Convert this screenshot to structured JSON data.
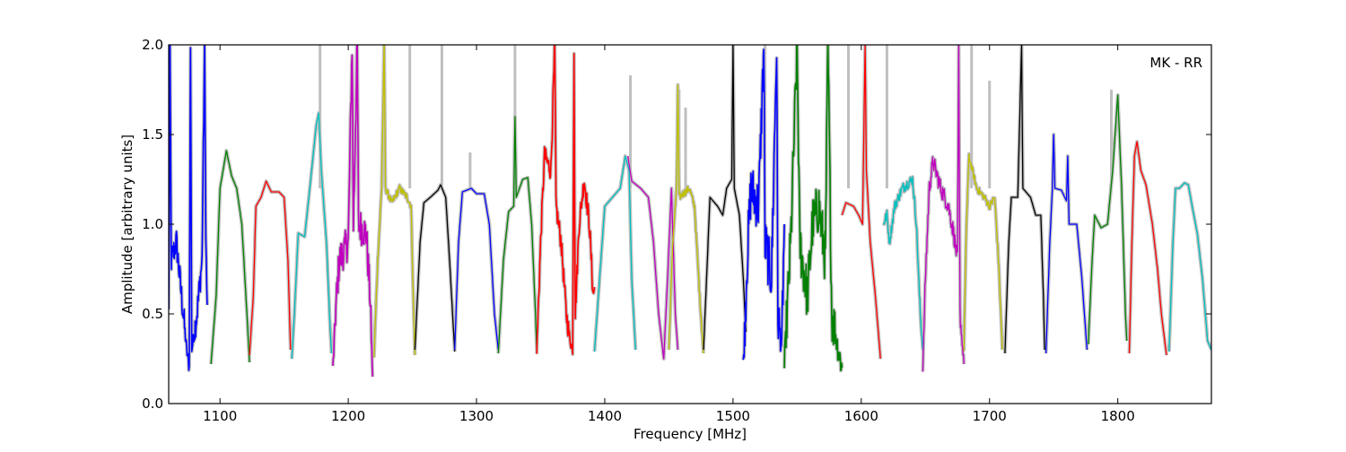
{
  "chart_data": {
    "type": "line",
    "title": "",
    "annotation": "MK - RR",
    "xlabel": "Frequency [MHz]",
    "ylabel": "Amplitude [arbitrary units]",
    "xlim": [
      1060,
      1873
    ],
    "ylim": [
      0,
      2.0
    ],
    "xticks": [
      1100,
      1200,
      1300,
      1400,
      1500,
      1600,
      1700,
      1800
    ],
    "xtick_labels": [
      "1100",
      "1200",
      "1300",
      "1400",
      "1500",
      "1600",
      "1700",
      "1800"
    ],
    "yticks": [
      0,
      0.5,
      1.0,
      1.5,
      2.0
    ],
    "ytick_labels": [
      "0.0",
      "0.5",
      "1.0",
      "1.5",
      "2.0"
    ],
    "grid": false,
    "envelope_color": "#bfbfbf",
    "rfi_spikes": [
      [
        1178,
        2.0
      ],
      [
        1248,
        2.0
      ],
      [
        1273,
        2.0
      ],
      [
        1295,
        1.4
      ],
      [
        1330,
        2.0
      ],
      [
        1420,
        1.83
      ],
      [
        1458,
        1.75
      ],
      [
        1463,
        1.65
      ],
      [
        1525,
        2.0
      ],
      [
        1590,
        2.0
      ],
      [
        1620,
        2.0
      ],
      [
        1686,
        2.0
      ],
      [
        1700,
        1.8
      ],
      [
        1795,
        1.75
      ]
    ],
    "series": [
      {
        "color": "#0000ff",
        "noise": 0.08,
        "points": [
          [
            1060,
            0.5
          ],
          [
            1061,
            2.0
          ],
          [
            1062,
            0.8
          ],
          [
            1066,
            0.9
          ],
          [
            1070,
            0.6
          ],
          [
            1074,
            0.3
          ],
          [
            1076,
            0.2
          ],
          [
            1077,
            2.0
          ],
          [
            1078,
            0.3
          ],
          [
            1082,
            0.5
          ],
          [
            1086,
            0.8
          ],
          [
            1088,
            2.0
          ],
          [
            1089,
            0.9
          ],
          [
            1090,
            0.55
          ]
        ]
      },
      {
        "color": "#008000",
        "noise": 0,
        "points": [
          [
            1093,
            0.22
          ],
          [
            1097,
            0.6
          ],
          [
            1100,
            1.2
          ],
          [
            1105,
            1.41
          ],
          [
            1109,
            1.27
          ],
          [
            1113,
            1.2
          ],
          [
            1117,
            1.0
          ],
          [
            1121,
            0.5
          ],
          [
            1123,
            0.23
          ]
        ]
      },
      {
        "color": "#ff0000",
        "noise": 0,
        "points": [
          [
            1123,
            0.27
          ],
          [
            1126,
            0.6
          ],
          [
            1128,
            1.1
          ],
          [
            1132,
            1.15
          ],
          [
            1136,
            1.24
          ],
          [
            1140,
            1.18
          ],
          [
            1146,
            1.18
          ],
          [
            1150,
            1.15
          ],
          [
            1153,
            0.8
          ],
          [
            1155,
            0.3
          ]
        ]
      },
      {
        "color": "#00bfbf",
        "noise": 0,
        "points": [
          [
            1156,
            0.25
          ],
          [
            1158,
            0.5
          ],
          [
            1161,
            0.95
          ],
          [
            1166,
            0.93
          ],
          [
            1170,
            1.2
          ],
          [
            1175,
            1.55
          ],
          [
            1177,
            1.62
          ],
          [
            1179,
            1.3
          ],
          [
            1183,
            0.9
          ],
          [
            1186,
            0.4
          ],
          [
            1187,
            0.28
          ]
        ]
      },
      {
        "color": "#bf00bf",
        "noise": 0.1,
        "points": [
          [
            1188,
            0.18
          ],
          [
            1190,
            0.5
          ],
          [
            1193,
            0.8
          ],
          [
            1200,
            0.9
          ],
          [
            1203,
            2.0
          ],
          [
            1204,
            1.0
          ],
          [
            1207,
            2.0
          ],
          [
            1208,
            1.0
          ],
          [
            1214,
            0.95
          ],
          [
            1217,
            0.6
          ],
          [
            1219,
            0.15
          ]
        ]
      },
      {
        "color": "#bfbf00",
        "noise": 0.02,
        "points": [
          [
            1220,
            0.25
          ],
          [
            1223,
            0.8
          ],
          [
            1226,
            1.2
          ],
          [
            1228,
            2.0
          ],
          [
            1229,
            1.2
          ],
          [
            1234,
            1.12
          ],
          [
            1240,
            1.2
          ],
          [
            1246,
            1.15
          ],
          [
            1249,
            1.1
          ],
          [
            1251,
            0.5
          ],
          [
            1252,
            0.27
          ]
        ]
      },
      {
        "color": "#000000",
        "noise": 0,
        "points": [
          [
            1252,
            0.3
          ],
          [
            1256,
            0.9
          ],
          [
            1259,
            1.12
          ],
          [
            1264,
            1.15
          ],
          [
            1270,
            1.19
          ],
          [
            1272,
            1.22
          ],
          [
            1276,
            1.15
          ],
          [
            1279,
            0.8
          ],
          [
            1283,
            0.29
          ]
        ]
      },
      {
        "color": "#0000ff",
        "noise": 0,
        "points": [
          [
            1283,
            0.3
          ],
          [
            1286,
            0.9
          ],
          [
            1289,
            1.18
          ],
          [
            1296,
            1.2
          ],
          [
            1300,
            1.17
          ],
          [
            1306,
            1.17
          ],
          [
            1310,
            1.0
          ],
          [
            1314,
            0.5
          ],
          [
            1317,
            0.3
          ]
        ]
      },
      {
        "color": "#008000",
        "noise": 0,
        "points": [
          [
            1317,
            0.28
          ],
          [
            1321,
            0.8
          ],
          [
            1325,
            1.07
          ],
          [
            1329,
            1.1
          ],
          [
            1330,
            1.6
          ],
          [
            1331,
            1.15
          ],
          [
            1336,
            1.25
          ],
          [
            1340,
            1.26
          ],
          [
            1343,
            1.0
          ],
          [
            1346,
            0.5
          ],
          [
            1347,
            0.3
          ]
        ]
      },
      {
        "color": "#ff0000",
        "noise": 0.06,
        "points": [
          [
            1347,
            0.3
          ],
          [
            1350,
            0.9
          ],
          [
            1353,
            1.38
          ],
          [
            1358,
            1.3
          ],
          [
            1361,
            2.0
          ],
          [
            1362,
            1.1
          ],
          [
            1366,
            0.9
          ],
          [
            1370,
            0.5
          ],
          [
            1373,
            0.35
          ],
          [
            1375,
            0.3
          ],
          [
            1376,
            2.0
          ],
          [
            1377,
            0.5
          ],
          [
            1380,
            1.0
          ],
          [
            1384,
            1.25
          ],
          [
            1388,
            1.0
          ],
          [
            1391,
            0.6
          ],
          [
            1392,
            0.65
          ]
        ]
      },
      {
        "color": "#00bfbf",
        "noise": 0,
        "points": [
          [
            1392,
            0.29
          ],
          [
            1396,
            0.7
          ],
          [
            1400,
            1.1
          ],
          [
            1406,
            1.15
          ],
          [
            1412,
            1.2
          ],
          [
            1416,
            1.38
          ],
          [
            1419,
            1.3
          ],
          [
            1421,
            0.7
          ],
          [
            1424,
            0.3
          ]
        ]
      },
      {
        "color": "#bf00bf",
        "noise": 0,
        "points": [
          [
            1418,
            1.38
          ],
          [
            1421,
            1.24
          ],
          [
            1428,
            1.2
          ],
          [
            1434,
            1.15
          ],
          [
            1438,
            0.9
          ],
          [
            1442,
            0.5
          ],
          [
            1446,
            0.25
          ],
          [
            1449,
            0.7
          ],
          [
            1452,
            1.2
          ],
          [
            1455,
            0.5
          ],
          [
            1457,
            0.3
          ]
        ]
      },
      {
        "color": "#bfbf00",
        "noise": 0.02,
        "points": [
          [
            1450,
            0.3
          ],
          [
            1453,
            0.9
          ],
          [
            1456,
            1.2
          ],
          [
            1457,
            1.78
          ],
          [
            1458,
            1.15
          ],
          [
            1466,
            1.2
          ],
          [
            1470,
            1.1
          ],
          [
            1474,
            0.6
          ],
          [
            1477,
            0.28
          ]
        ]
      },
      {
        "color": "#000000",
        "noise": 0,
        "points": [
          [
            1477,
            0.3
          ],
          [
            1480,
            0.8
          ],
          [
            1482,
            1.15
          ],
          [
            1488,
            1.1
          ],
          [
            1492,
            1.05
          ],
          [
            1495,
            1.2
          ],
          [
            1499,
            1.25
          ],
          [
            1500,
            2.0
          ],
          [
            1501,
            1.2
          ],
          [
            1505,
            1.05
          ],
          [
            1508,
            0.7
          ],
          [
            1510,
            0.4
          ]
        ]
      },
      {
        "color": "#0000ff",
        "noise": 0.15,
        "points": [
          [
            1508,
            0.2
          ],
          [
            1511,
            0.8
          ],
          [
            1514,
            1.2
          ],
          [
            1520,
            1.1
          ],
          [
            1524,
            2.0
          ],
          [
            1525,
            0.9
          ],
          [
            1530,
            0.7
          ],
          [
            1534,
            2.0
          ],
          [
            1535,
            0.5
          ],
          [
            1538,
            0.3
          ],
          [
            1540,
            1.0
          ]
        ]
      },
      {
        "color": "#008000",
        "noise": 0.15,
        "points": [
          [
            1540,
            0.2
          ],
          [
            1545,
            0.9
          ],
          [
            1550,
            2.0
          ],
          [
            1552,
            0.9
          ],
          [
            1558,
            0.6
          ],
          [
            1562,
            1.0
          ],
          [
            1567,
            1.1
          ],
          [
            1572,
            0.8
          ],
          [
            1574,
            2.0
          ],
          [
            1577,
            0.5
          ],
          [
            1582,
            0.3
          ],
          [
            1585,
            0.2
          ]
        ]
      },
      {
        "color": "#ff0000",
        "noise": 0,
        "points": [
          [
            1585,
            1.05
          ],
          [
            1588,
            1.12
          ],
          [
            1594,
            1.1
          ],
          [
            1598,
            1.05
          ],
          [
            1601,
            1.0
          ],
          [
            1603,
            2.0
          ],
          [
            1604,
            1.3
          ],
          [
            1607,
            0.9
          ],
          [
            1611,
            0.6
          ],
          [
            1615,
            0.25
          ]
        ]
      },
      {
        "color": "#00bfbf",
        "noise": 0.03,
        "points": [
          [
            1617,
            1.0
          ],
          [
            1620,
            1.05
          ],
          [
            1622,
            0.9
          ],
          [
            1626,
            1.1
          ],
          [
            1632,
            1.2
          ],
          [
            1640,
            1.25
          ],
          [
            1643,
            1.0
          ],
          [
            1646,
            0.5
          ],
          [
            1648,
            0.3
          ]
        ]
      },
      {
        "color": "#bf00bf",
        "noise": 0.05,
        "points": [
          [
            1648,
            0.2
          ],
          [
            1650,
            0.7
          ],
          [
            1653,
            1.2
          ],
          [
            1656,
            1.35
          ],
          [
            1662,
            1.2
          ],
          [
            1668,
            1.1
          ],
          [
            1672,
            0.95
          ],
          [
            1675,
            0.8
          ],
          [
            1676,
            2.0
          ],
          [
            1677,
            0.5
          ],
          [
            1680,
            0.22
          ]
        ]
      },
      {
        "color": "#bfbf00",
        "noise": 0.02,
        "points": [
          [
            1680,
            0.3
          ],
          [
            1682,
            1.0
          ],
          [
            1684,
            1.38
          ],
          [
            1690,
            1.2
          ],
          [
            1696,
            1.15
          ],
          [
            1700,
            1.1
          ],
          [
            1704,
            1.15
          ],
          [
            1707,
            0.8
          ],
          [
            1710,
            0.3
          ]
        ]
      },
      {
        "color": "#000000",
        "noise": 0,
        "points": [
          [
            1712,
            0.28
          ],
          [
            1715,
            0.9
          ],
          [
            1717,
            1.15
          ],
          [
            1722,
            1.15
          ],
          [
            1725,
            2.0
          ],
          [
            1726,
            1.2
          ],
          [
            1732,
            1.15
          ],
          [
            1736,
            1.05
          ],
          [
            1740,
            1.05
          ],
          [
            1742,
            0.6
          ],
          [
            1743,
            0.3
          ]
        ]
      },
      {
        "color": "#0000ff",
        "noise": 0,
        "points": [
          [
            1744,
            0.28
          ],
          [
            1747,
            0.9
          ],
          [
            1749,
            1.2
          ],
          [
            1750,
            1.5
          ],
          [
            1751,
            1.2
          ],
          [
            1756,
            1.19
          ],
          [
            1760,
            1.13
          ],
          [
            1761,
            1.38
          ],
          [
            1762,
            1.0
          ],
          [
            1768,
            1.0
          ],
          [
            1772,
            0.7
          ],
          [
            1776,
            0.3
          ]
        ]
      },
      {
        "color": "#008000",
        "noise": 0,
        "points": [
          [
            1777,
            0.33
          ],
          [
            1780,
            0.8
          ],
          [
            1782,
            1.05
          ],
          [
            1787,
            0.98
          ],
          [
            1792,
            1.0
          ],
          [
            1796,
            1.3
          ],
          [
            1800,
            1.72
          ],
          [
            1803,
            1.2
          ],
          [
            1806,
            0.5
          ],
          [
            1807,
            0.35
          ]
        ]
      },
      {
        "color": "#ff0000",
        "noise": 0,
        "points": [
          [
            1809,
            0.28
          ],
          [
            1811,
            0.9
          ],
          [
            1813,
            1.38
          ],
          [
            1815,
            1.46
          ],
          [
            1818,
            1.3
          ],
          [
            1822,
            1.22
          ],
          [
            1827,
            1.0
          ],
          [
            1831,
            0.75
          ],
          [
            1834,
            0.5
          ],
          [
            1838,
            0.27
          ]
        ]
      },
      {
        "color": "#00bfbf",
        "noise": 0,
        "points": [
          [
            1840,
            0.29
          ],
          [
            1843,
            0.9
          ],
          [
            1845,
            1.2
          ],
          [
            1848,
            1.2
          ],
          [
            1852,
            1.23
          ],
          [
            1855,
            1.22
          ],
          [
            1858,
            1.1
          ],
          [
            1862,
            0.95
          ],
          [
            1866,
            0.7
          ],
          [
            1870,
            0.35
          ],
          [
            1873,
            0.3
          ]
        ]
      }
    ]
  }
}
